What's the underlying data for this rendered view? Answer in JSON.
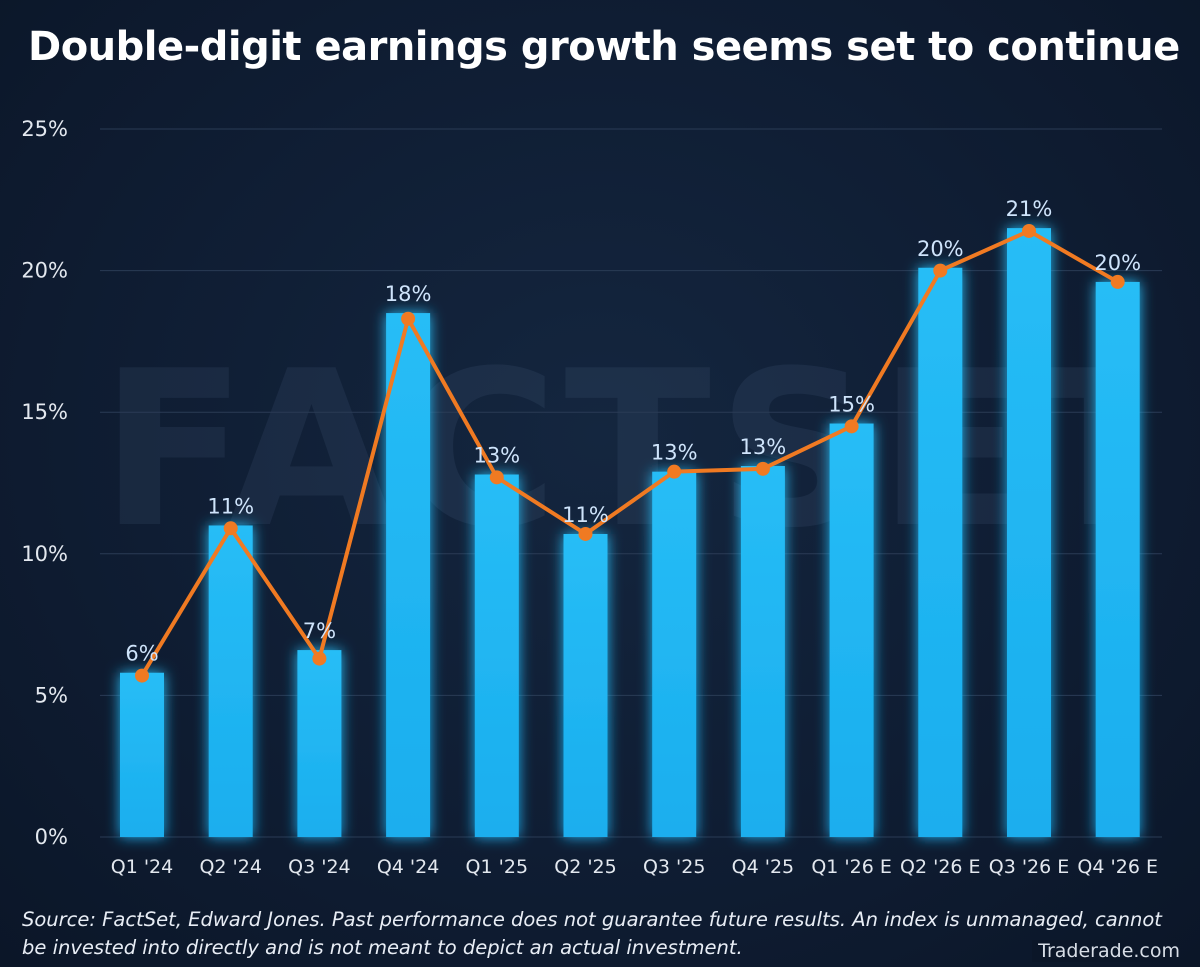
{
  "title": "Double-digit earnings growth seems set to continue",
  "watermark": "FACTSET",
  "source_note": "Source: FactSet, Edward Jones. Past performance does not guarantee future results. An index is unmanaged, cannot be invested into directly and is not meant to depict an actual investment.",
  "brand": "Traderade.com",
  "colors": {
    "background": "#0d1a2e",
    "bar": "#1ab1f0",
    "line": "#f07a22",
    "label": "#cfe4fb",
    "axis_text": "#e3e8ef",
    "grid": "#2a3b55"
  },
  "chart_data": {
    "type": "bar",
    "title": "Double-digit earnings growth seems set to continue",
    "xlabel": "",
    "ylabel": "",
    "categories": [
      "Q1 '24",
      "Q2 '24",
      "Q3 '24",
      "Q4 '24",
      "Q1 '25",
      "Q2 '25",
      "Q3 '25",
      "Q4 '25",
      "Q1 '26 E",
      "Q2 '26 E",
      "Q3 '26 E",
      "Q4 '26 E"
    ],
    "series": [
      {
        "type": "bar",
        "values": [
          5.8,
          11.0,
          6.6,
          18.5,
          12.8,
          10.7,
          12.9,
          13.1,
          14.6,
          20.1,
          21.5,
          19.6
        ]
      },
      {
        "type": "line",
        "values": [
          5.7,
          10.9,
          6.3,
          18.3,
          12.7,
          10.7,
          12.9,
          13.0,
          14.5,
          20.0,
          21.4,
          19.6
        ]
      }
    ],
    "data_labels": [
      "6%",
      "11%",
      "7%",
      "18%",
      "13%",
      "11%",
      "13%",
      "13%",
      "15%",
      "20%",
      "21%",
      "20%"
    ],
    "ylim": [
      0,
      25
    ],
    "yticks": [
      0,
      5,
      10,
      15,
      20,
      25
    ],
    "ytick_labels": [
      "0%",
      "5%",
      "10%",
      "15%",
      "20%",
      "25%"
    ],
    "grid": true,
    "legend": "none"
  }
}
